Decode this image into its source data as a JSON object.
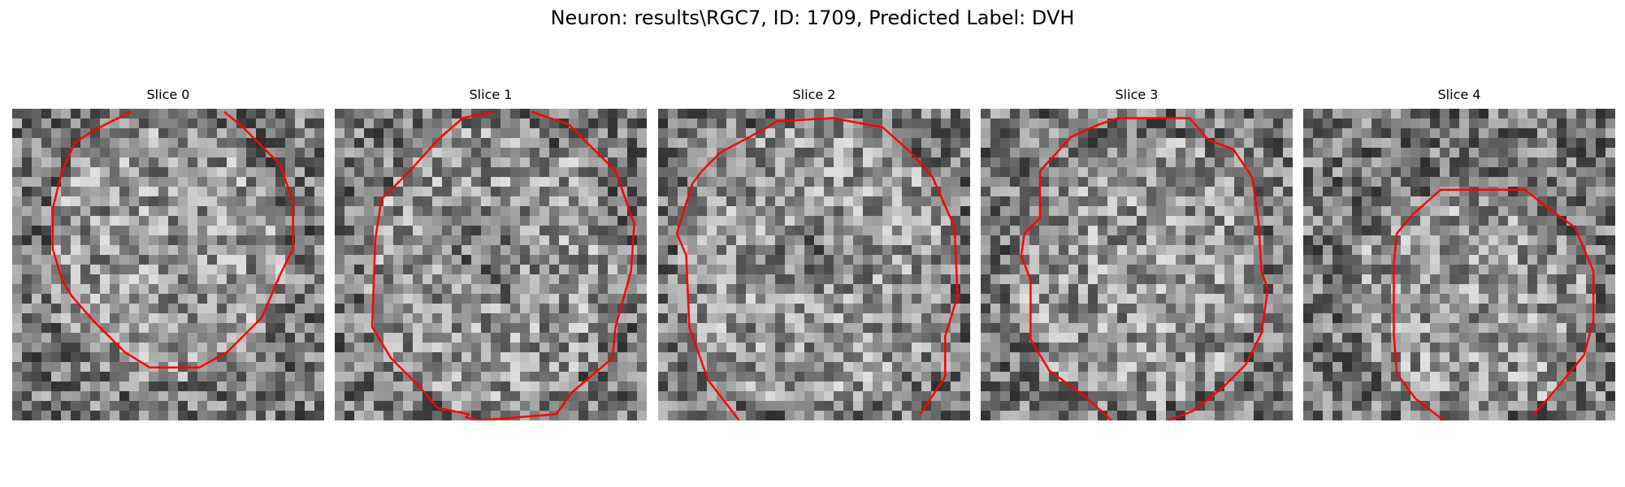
{
  "figure": {
    "title": "Neuron: results\\RGC7, ID: 1709, Predicted Label: DVH"
  },
  "panels": [
    {
      "title": "Slice 0",
      "seed": 11,
      "contour_color": "#ff0000"
    },
    {
      "title": "Slice 1",
      "seed": 23,
      "contour_color": "#ff0000"
    },
    {
      "title": "Slice 2",
      "seed": 37,
      "contour_color": "#ff0000"
    },
    {
      "title": "Slice 3",
      "seed": 41,
      "contour_color": "#ff0000"
    },
    {
      "title": "Slice 4",
      "seed": 59,
      "contour_color": "#ff0000"
    }
  ],
  "colormap": "gray"
}
